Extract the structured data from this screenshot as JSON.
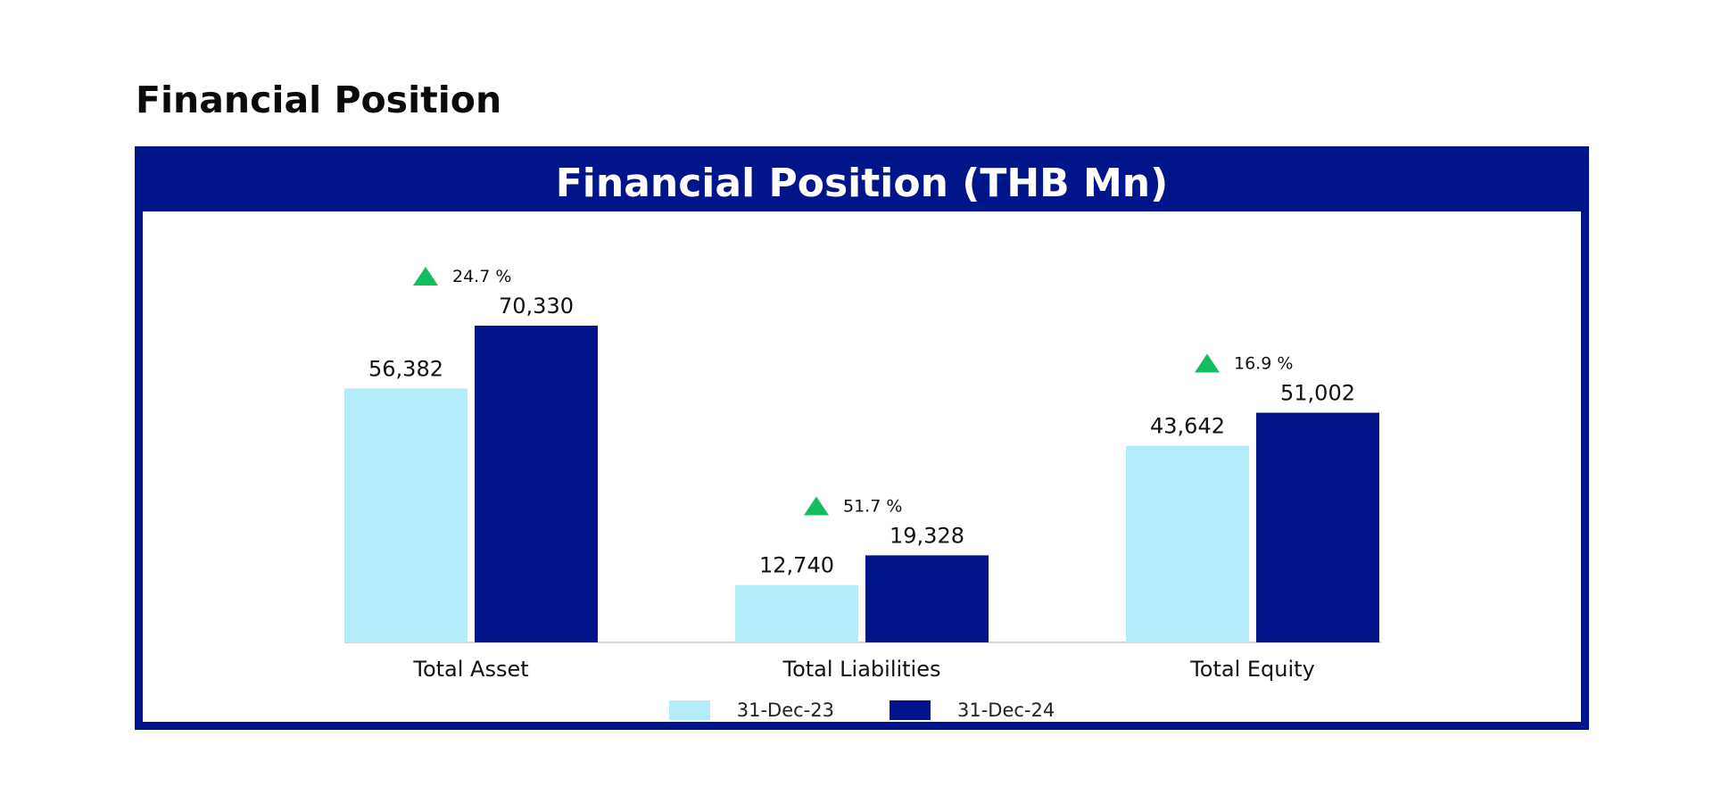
{
  "page": {
    "heading": "Financial Position"
  },
  "colors": {
    "header_bg": "#00158a",
    "series_2023": "#b3edfb",
    "series_2024": "#00158a",
    "up_arrow": "#14bd5e"
  },
  "chart_data": {
    "type": "bar",
    "title": "Financial Position (THB Mn)",
    "categories": [
      "Total Asset",
      "Total Liabilities",
      "Total Equity"
    ],
    "series": [
      {
        "name": "31-Dec-23",
        "values": [
          56382,
          12740,
          43642
        ],
        "labels": [
          "56,382",
          "12,740",
          "43,642"
        ]
      },
      {
        "name": "31-Dec-24",
        "values": [
          70330,
          19328,
          51002
        ],
        "labels": [
          "70,330",
          "19,328",
          "51,002"
        ]
      }
    ],
    "annotations": [
      {
        "category": "Total Asset",
        "icon": "up-triangle-icon",
        "text": "24.7 %"
      },
      {
        "category": "Total Liabilities",
        "icon": "up-triangle-icon",
        "text": "51.7 %"
      },
      {
        "category": "Total Equity",
        "icon": "up-triangle-icon",
        "text": "16.9 %"
      }
    ],
    "ylim": [
      0,
      70330
    ],
    "grid": false,
    "legend_position": "bottom-center"
  }
}
